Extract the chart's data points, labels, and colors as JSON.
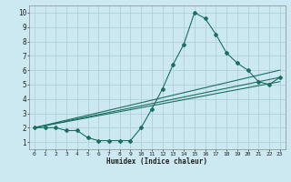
{
  "title": "",
  "xlabel": "Humidex (Indice chaleur)",
  "ylabel": "",
  "bg_color": "#cce8f0",
  "grid_color": "#b0d0db",
  "line_color": "#1a7060",
  "xlim": [
    -0.5,
    23.5
  ],
  "ylim": [
    0.5,
    10.5
  ],
  "xticks": [
    0,
    1,
    2,
    3,
    4,
    5,
    6,
    7,
    8,
    9,
    10,
    11,
    12,
    13,
    14,
    15,
    16,
    17,
    18,
    19,
    20,
    21,
    22,
    23
  ],
  "yticks": [
    1,
    2,
    3,
    4,
    5,
    6,
    7,
    8,
    9,
    10
  ],
  "curve1_x": [
    0,
    1,
    2,
    3,
    4,
    5,
    6,
    7,
    8,
    9,
    10,
    11,
    12,
    13,
    14,
    15,
    16,
    17,
    18,
    19,
    20,
    21,
    22,
    23
  ],
  "curve1_y": [
    2,
    2,
    2,
    1.8,
    1.8,
    1.3,
    1.1,
    1.1,
    1.1,
    1.1,
    2.0,
    3.3,
    4.7,
    6.4,
    7.8,
    10,
    9.6,
    8.5,
    7.2,
    6.5,
    6.0,
    5.2,
    5.0,
    5.5
  ],
  "curve2_x": [
    0,
    23
  ],
  "curve2_y": [
    2,
    6.0
  ],
  "curve3_x": [
    0,
    23
  ],
  "curve3_y": [
    2,
    5.5
  ],
  "curve4_x": [
    0,
    23
  ],
  "curve4_y": [
    2,
    5.2
  ]
}
